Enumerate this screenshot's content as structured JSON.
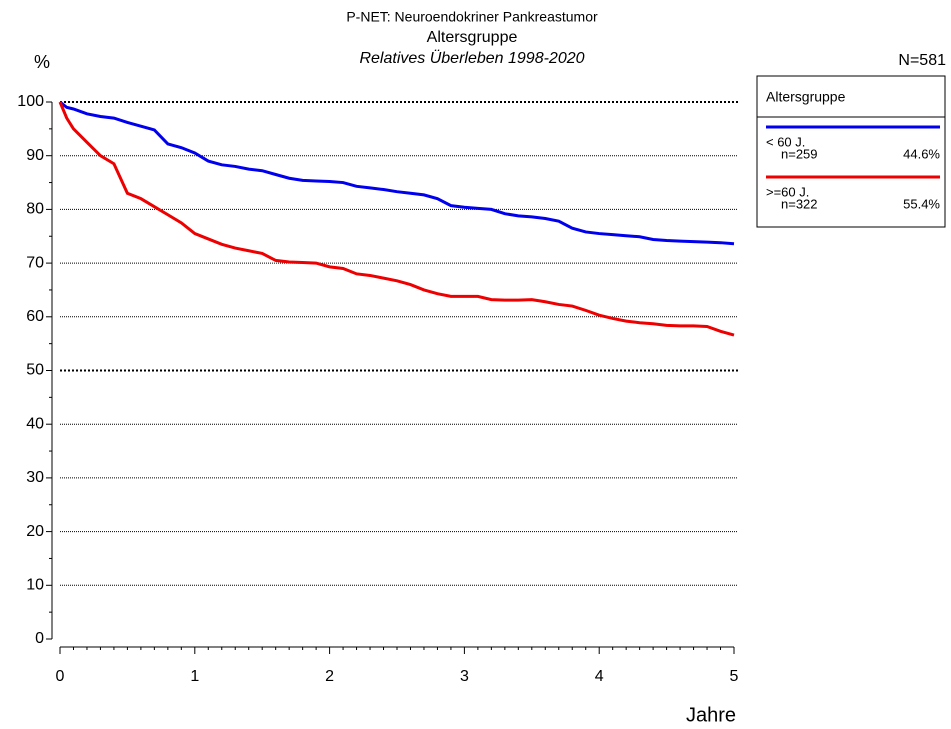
{
  "chart_data": {
    "type": "line",
    "title": "P-NET: Neuroendokriner Pankreastumor",
    "subtitle": "Altersgruppe",
    "subtitle2": "Relatives Überleben 1998-2020",
    "total_label": "N=581",
    "y_label": "%",
    "x_label": "Jahre",
    "legend_title": "Altersgruppe",
    "legend_position": "right",
    "x": [
      0,
      0.05,
      0.1,
      0.2,
      0.3,
      0.4,
      0.5,
      0.6,
      0.7,
      0.8,
      0.9,
      1,
      1.1,
      1.2,
      1.3,
      1.4,
      1.5,
      1.6,
      1.7,
      1.8,
      1.9,
      2,
      2.1,
      2.2,
      2.3,
      2.4,
      2.5,
      2.6,
      2.7,
      2.8,
      2.9,
      3,
      3.1,
      3.2,
      3.3,
      3.4,
      3.5,
      3.6,
      3.7,
      3.8,
      3.9,
      4,
      4.1,
      4.2,
      4.3,
      4.4,
      4.5,
      4.6,
      4.7,
      4.8,
      4.9,
      5
    ],
    "series": [
      {
        "name": "< 60 J.",
        "n_label": "n=259",
        "share_label": "44.6%",
        "color": "#0000ee",
        "values": [
          100,
          99,
          98.7,
          97.8,
          97.3,
          97,
          96.2,
          95.5,
          94.8,
          92.2,
          91.5,
          90.5,
          89,
          88.3,
          88,
          87.5,
          87.2,
          86.5,
          85.8,
          85.4,
          85.3,
          85.2,
          85,
          84.3,
          84,
          83.7,
          83.3,
          83,
          82.7,
          82,
          80.7,
          80.4,
          80.2,
          80,
          79.2,
          78.8,
          78.6,
          78.3,
          77.8,
          76.5,
          75.8,
          75.5,
          75.3,
          75.1,
          74.9,
          74.4,
          74.2,
          74.1,
          74,
          73.9,
          73.8,
          73.6
        ]
      },
      {
        "name": ">=60 J.",
        "n_label": "n=322",
        "share_label": "55.4%",
        "color": "#ee0000",
        "values": [
          100,
          97,
          95,
          92.5,
          90,
          88.5,
          83,
          82,
          80.5,
          79,
          77.5,
          75.5,
          74.5,
          73.5,
          72.8,
          72.3,
          71.8,
          70.5,
          70.2,
          70.1,
          70,
          69.3,
          69,
          68,
          67.7,
          67.2,
          66.7,
          66,
          65,
          64.3,
          63.8,
          63.8,
          63.8,
          63.2,
          63.1,
          63.1,
          63.2,
          62.8,
          62.3,
          62,
          61.2,
          60.3,
          59.7,
          59.2,
          58.9,
          58.7,
          58.4,
          58.3,
          58.3,
          58.2,
          57.3,
          56.6
        ]
      }
    ],
    "xlim": [
      0,
      5
    ],
    "xticks": [
      0,
      1,
      2,
      3,
      4,
      5
    ],
    "ylim": [
      0,
      100
    ],
    "yticks": [
      0,
      10,
      20,
      30,
      40,
      50,
      60,
      70,
      80,
      90,
      100
    ],
    "reference_lines": [
      50,
      100
    ],
    "grid": true
  }
}
